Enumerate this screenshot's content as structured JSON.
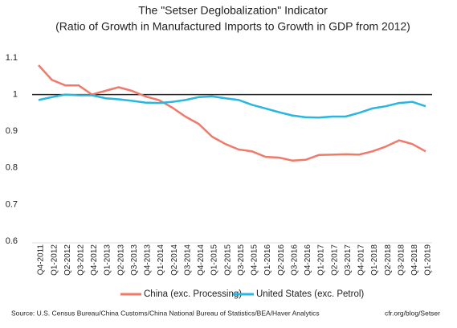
{
  "chart_data": {
    "type": "line",
    "title": "The \"Setser Deglobalization\" Indicator",
    "subtitle": "(Ratio of Growth in Manufactured Imports to Growth in GDP from 2012)",
    "source": "Source: U.S. Census Bureau/China Customs/China National Bureau of Statistics/BEA/Haver Analytics",
    "credit": "cfr.org/blog/Setser",
    "categories": [
      "Q4-2011",
      "Q1-2012",
      "Q2-2012",
      "Q3-2012",
      "Q4-2012",
      "Q1-2013",
      "Q2-2013",
      "Q3-2013",
      "Q4-2013",
      "Q1-2014",
      "Q2-2014",
      "Q3-2014",
      "Q4-2014",
      "Q1-2015",
      "Q2-2015",
      "Q3-2015",
      "Q4-2015",
      "Q1-2016",
      "Q2-2016",
      "Q3-2016",
      "Q4-2016",
      "Q1-2017",
      "Q2-2017",
      "Q3-2017",
      "Q4-2017",
      "Q1-2018",
      "Q2-2018",
      "Q3-2018",
      "Q4-2018",
      "Q1-2019"
    ],
    "series": [
      {
        "name": "China (exc. Processing)",
        "color": "#f07a6a",
        "values": [
          1.08,
          1.04,
          1.025,
          1.025,
          1.0,
          1.01,
          1.02,
          1.01,
          0.995,
          0.985,
          0.965,
          0.94,
          0.92,
          0.885,
          0.865,
          0.85,
          0.845,
          0.83,
          0.828,
          0.82,
          0.822,
          0.835,
          0.836,
          0.837,
          0.836,
          0.845,
          0.858,
          0.875,
          0.865,
          0.845
        ]
      },
      {
        "name": "United States (exc. Petrol)",
        "color": "#29b6e0",
        "values": [
          0.985,
          0.993,
          1.0,
          0.998,
          0.998,
          0.99,
          0.987,
          0.983,
          0.978,
          0.977,
          0.98,
          0.985,
          0.993,
          0.995,
          0.99,
          0.985,
          0.972,
          0.962,
          0.952,
          0.943,
          0.938,
          0.937,
          0.94,
          0.94,
          0.95,
          0.962,
          0.968,
          0.977,
          0.98,
          0.968
        ]
      }
    ],
    "reference_line": 1,
    "ylim": [
      0.6,
      1.1
    ],
    "yticks": [
      0.6,
      0.7,
      0.8,
      0.9,
      1,
      1.1
    ],
    "legend": "bottom",
    "grid": false
  }
}
